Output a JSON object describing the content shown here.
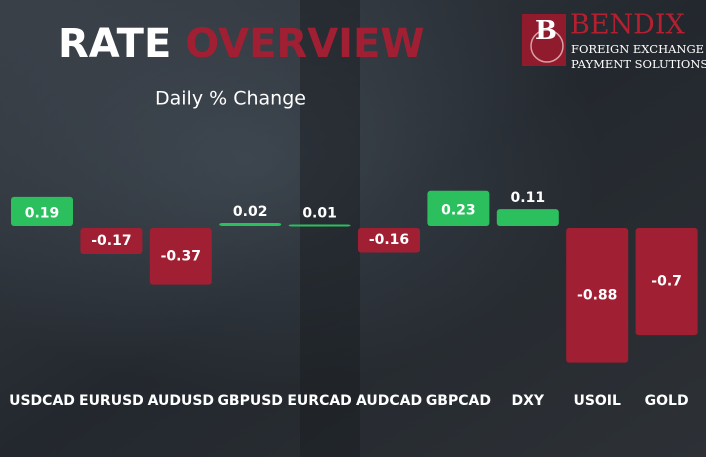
{
  "chart_data": {
    "type": "bar",
    "title": [
      "RATE",
      "OVERVIEW"
    ],
    "subtitle": "Daily % Change",
    "categories": [
      "USDCAD",
      "EURUSD",
      "AUDUSD",
      "GBPUSD",
      "EURCAD",
      "AUDCAD",
      "GBPCAD",
      "DXY",
      "USOIL",
      "GOLD"
    ],
    "values": [
      0.19,
      -0.17,
      -0.37,
      0.02,
      0.01,
      -0.16,
      0.23,
      0.11,
      -0.88,
      -0.7
    ],
    "color_positive": "#2cbf5e",
    "color_negative": "#a11f33"
  },
  "logo": {
    "mark": "B",
    "name": "BENDIX",
    "lines": [
      "FOREIGN EXCHANGE &",
      "PAYMENT SOLUTIONS"
    ]
  }
}
